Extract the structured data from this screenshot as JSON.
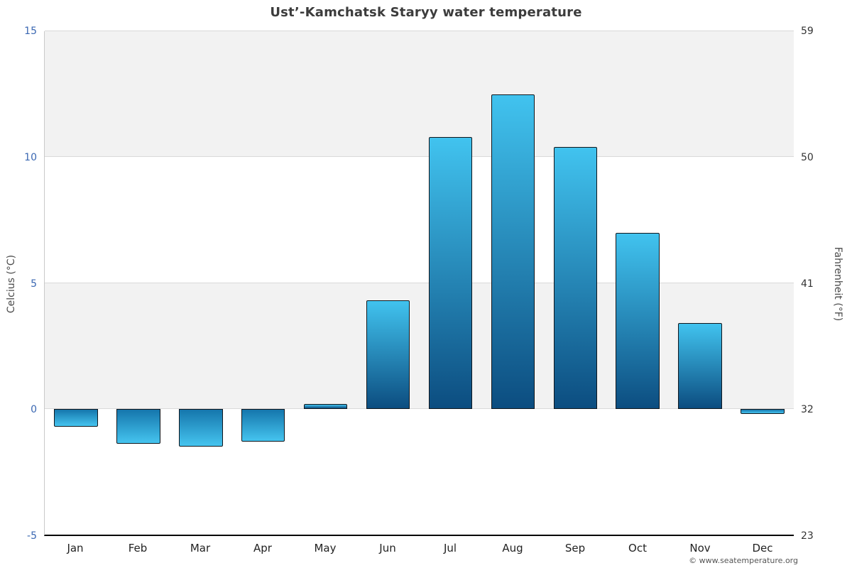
{
  "title": "Ust’-Kamchatsk Staryy water temperature",
  "ylabel_left": "Celcius (°C)",
  "ylabel_right": "Fahrenheit (°F)",
  "footer": "© www.seatemperature.org",
  "chart_data": {
    "type": "bar",
    "title": "Ust’-Kamchatsk Staryy water temperature",
    "categories": [
      "Jan",
      "Feb",
      "Mar",
      "Apr",
      "May",
      "Jun",
      "Jul",
      "Aug",
      "Sep",
      "Oct",
      "Nov",
      "Dec"
    ],
    "values": [
      -0.7,
      -1.4,
      -1.5,
      -1.3,
      0.2,
      4.3,
      10.8,
      12.5,
      10.4,
      7.0,
      3.4,
      -0.2
    ],
    "xlabel": "",
    "ylabel": "Celcius (°C)",
    "y2label": "Fahrenheit (°F)",
    "ylim": [
      -5,
      15
    ],
    "y2lim": [
      23,
      59
    ],
    "yticks": [
      -5,
      0,
      5,
      10,
      15
    ],
    "y2ticks": [
      23,
      32,
      41,
      50,
      59
    ],
    "grid": true,
    "legend": false,
    "colors": {
      "bar_light": "#41c3ef",
      "bar_dark": "#0c4d80",
      "bar_neg_top": "#1576ac",
      "bar_neg_bottom": "#45c4ef",
      "bar_border": "#10161c",
      "band": "#f2f2f2",
      "grid": "#d9d9d9",
      "left_axis_text": "#3a67b2",
      "right_axis_text": "#333333",
      "title_text": "#3c3c3c"
    }
  }
}
